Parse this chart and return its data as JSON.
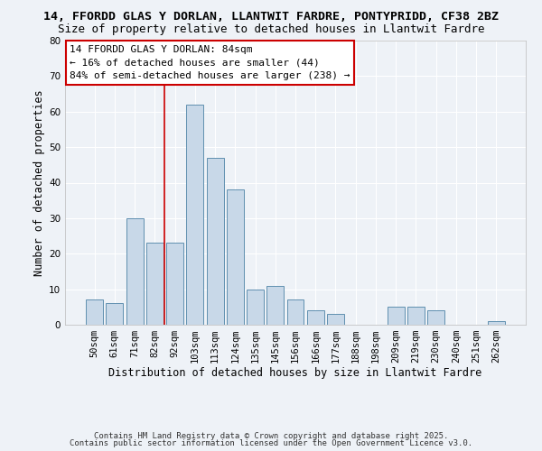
{
  "title1": "14, FFORDD GLAS Y DORLAN, LLANTWIT FARDRE, PONTYPRIDD, CF38 2BZ",
  "title2": "Size of property relative to detached houses in Llantwit Fardre",
  "xlabel": "Distribution of detached houses by size in Llantwit Fardre",
  "ylabel": "Number of detached properties",
  "bar_labels": [
    "50sqm",
    "61sqm",
    "71sqm",
    "82sqm",
    "92sqm",
    "103sqm",
    "113sqm",
    "124sqm",
    "135sqm",
    "145sqm",
    "156sqm",
    "166sqm",
    "177sqm",
    "188sqm",
    "198sqm",
    "209sqm",
    "219sqm",
    "230sqm",
    "240sqm",
    "251sqm",
    "262sqm"
  ],
  "bar_values": [
    7,
    6,
    30,
    23,
    23,
    62,
    47,
    38,
    10,
    11,
    7,
    4,
    3,
    0,
    0,
    5,
    5,
    4,
    0,
    0,
    1
  ],
  "bar_color": "#c8d8e8",
  "bar_edge_color": "#6090b0",
  "vline_x": 3.5,
  "vline_color": "#cc0000",
  "ylim": [
    0,
    80
  ],
  "yticks": [
    0,
    10,
    20,
    30,
    40,
    50,
    60,
    70,
    80
  ],
  "background_color": "#eef2f7",
  "grid_color": "#ffffff",
  "annotation_text": "14 FFORDD GLAS Y DORLAN: 84sqm\n← 16% of detached houses are smaller (44)\n84% of semi-detached houses are larger (238) →",
  "footer1": "Contains HM Land Registry data © Crown copyright and database right 2025.",
  "footer2": "Contains public sector information licensed under the Open Government Licence v3.0.",
  "title1_fontsize": 9.5,
  "title2_fontsize": 9,
  "axis_fontsize": 8.5,
  "tick_fontsize": 7.5,
  "annotation_fontsize": 8,
  "footer_fontsize": 6.5
}
